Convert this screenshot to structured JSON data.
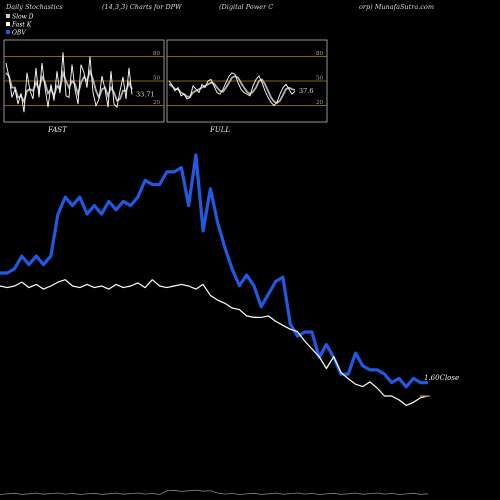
{
  "header": {
    "title": "Daily Stochastics",
    "params": "(14,3,3) Charts for DPW",
    "company_a": "(Digital Power C",
    "company_b": "orp) MunafaSutra.com"
  },
  "legend": [
    {
      "label": "Slow  D",
      "color": "#cccccc"
    },
    {
      "label": "Fast K",
      "color": "#ffffff"
    },
    {
      "label": "OBV",
      "color": "#1f5ae0"
    }
  ],
  "colors": {
    "background": "#000000",
    "obv": "#1f5ae0",
    "close": "#ffffff",
    "stoch_d": "#b0b0b0",
    "stoch_k": "#ffffff",
    "level": "#b8860b",
    "panel_border": "#bbbbbb"
  },
  "chart_data": [
    {
      "type": "line",
      "title": "FAST",
      "ylim": [
        0,
        100
      ],
      "ticks": [
        20,
        50,
        80
      ],
      "last_value_label": "33.71",
      "series": [
        {
          "name": "Fast K",
          "values": [
            72,
            55,
            30,
            40,
            22,
            35,
            12,
            60,
            38,
            28,
            66,
            30,
            72,
            42,
            18,
            46,
            26,
            62,
            35,
            85,
            32,
            30,
            70,
            40,
            22,
            70,
            60,
            42,
            80,
            36,
            20,
            28,
            56,
            40,
            18,
            62,
            22,
            18,
            38,
            55,
            28,
            66,
            33.71
          ]
        },
        {
          "name": "Slow  D",
          "values": [
            60,
            56,
            42,
            42,
            30,
            32,
            25,
            38,
            40,
            38,
            48,
            40,
            55,
            48,
            35,
            40,
            32,
            44,
            40,
            60,
            50,
            42,
            50,
            46,
            34,
            48,
            55,
            50,
            62,
            52,
            38,
            30,
            40,
            42,
            32,
            42,
            36,
            26,
            28,
            38,
            38,
            48,
            40
          ]
        }
      ]
    },
    {
      "type": "line",
      "title": "FULL",
      "ylim": [
        0,
        100
      ],
      "ticks": [
        20,
        50,
        80
      ],
      "last_value_label": "37.6",
      "series": [
        {
          "name": "Fast K",
          "values": [
            50,
            45,
            38,
            42,
            32,
            34,
            28,
            30,
            44,
            40,
            36,
            46,
            42,
            50,
            52,
            44,
            36,
            34,
            40,
            48,
            56,
            60,
            58,
            48,
            40,
            36,
            34,
            32,
            44,
            52,
            56,
            48,
            38,
            30,
            24,
            20,
            24,
            34,
            42,
            46,
            40,
            34,
            37.6
          ]
        },
        {
          "name": "Slow  D",
          "values": [
            46,
            44,
            40,
            40,
            36,
            34,
            31,
            31,
            36,
            38,
            40,
            42,
            44,
            46,
            48,
            47,
            42,
            38,
            37,
            42,
            48,
            54,
            56,
            54,
            48,
            42,
            37,
            34,
            37,
            42,
            50,
            52,
            46,
            38,
            30,
            25,
            23,
            26,
            33,
            40,
            42,
            40,
            39
          ]
        }
      ]
    },
    {
      "type": "line",
      "title": "",
      "last_value_label": "1.60Close",
      "x": [
        0,
        1,
        2,
        3,
        4,
        5,
        6,
        7,
        8,
        9,
        10,
        11,
        12,
        13,
        14,
        15,
        16,
        17,
        18,
        19,
        20,
        21,
        22,
        23,
        24,
        25,
        26,
        27,
        28,
        29,
        30,
        31,
        32,
        33,
        34,
        35,
        36,
        37,
        38,
        39,
        40,
        41,
        42,
        43,
        44,
        45,
        46,
        47,
        48,
        49,
        50,
        51,
        52,
        53,
        54,
        55,
        56,
        57,
        58,
        59
      ],
      "series": [
        {
          "name": "OBV",
          "values": [
            0,
            0,
            2,
            8,
            4,
            8,
            4,
            8,
            28,
            36,
            32,
            36,
            28,
            32,
            28,
            34,
            30,
            34,
            32,
            36,
            44,
            42,
            42,
            48,
            48,
            50,
            32,
            56,
            20,
            40,
            24,
            12,
            2,
            -6,
            -1,
            -6,
            -16,
            -10,
            -4,
            -2,
            -24,
            -30,
            -28,
            -28,
            -40,
            -34,
            -40,
            -48,
            -48,
            -38,
            -44,
            -46,
            -46,
            -48,
            -52,
            -50,
            -54,
            -50,
            -52,
            -52
          ]
        },
        {
          "name": "Close",
          "values": [
            3.0,
            2.98,
            3.0,
            3.05,
            2.98,
            3.02,
            2.96,
            3.0,
            3.05,
            3.08,
            3.0,
            2.98,
            3.02,
            2.98,
            3.0,
            2.96,
            3.02,
            2.98,
            3.0,
            3.04,
            2.98,
            3.08,
            3.0,
            2.98,
            3.0,
            3.02,
            3.0,
            2.96,
            3.02,
            2.88,
            2.82,
            2.78,
            2.72,
            2.7,
            2.62,
            2.6,
            2.6,
            2.62,
            2.55,
            2.5,
            2.45,
            2.42,
            2.3,
            2.2,
            2.1,
            1.95,
            2.1,
            1.9,
            1.82,
            1.75,
            1.72,
            1.78,
            1.7,
            1.6,
            1.6,
            1.55,
            1.48,
            1.52,
            1.58,
            1.6
          ]
        }
      ]
    }
  ]
}
